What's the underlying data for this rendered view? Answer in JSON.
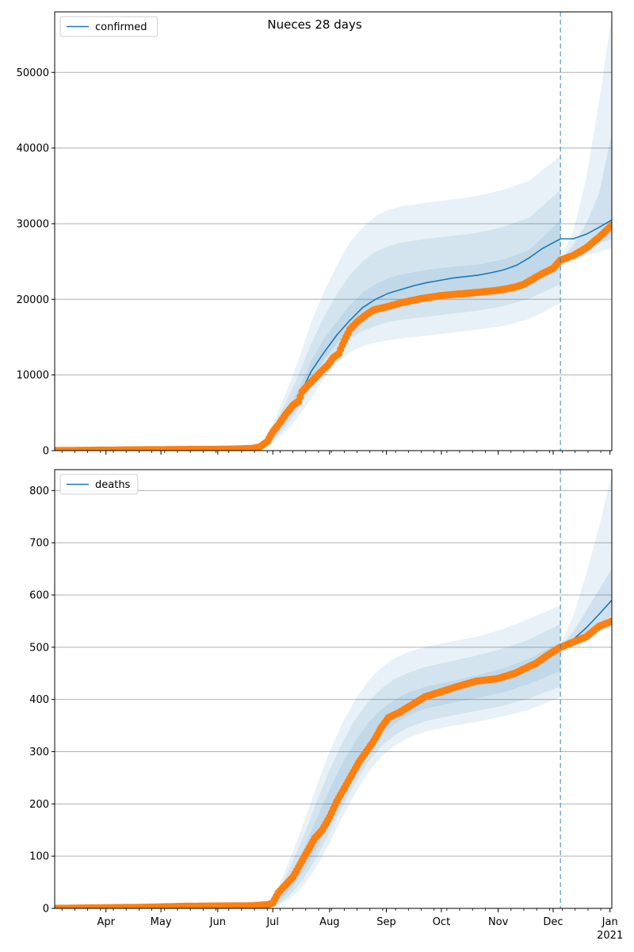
{
  "figure": {
    "title": "Nueces 28 days"
  },
  "colors": {
    "model_line": "#1f77b4",
    "band": "#1f77b4",
    "observed": "#ff7f0e",
    "grid": "#b0b0b0",
    "forecast_marker": "#1f77b4"
  },
  "chart_data": [
    {
      "type": "line",
      "legend": [
        "confirmed"
      ],
      "legend_position": "top-left",
      "grid": "y",
      "x_range": [
        "2020-03-04",
        "2021-01-02"
      ],
      "ylim": [
        0,
        58000
      ],
      "y_ticks": [
        0,
        10000,
        20000,
        30000,
        40000,
        50000
      ],
      "forecast_start": "2020-12-05",
      "x_ticks": [
        {
          "date": "2020-04-01",
          "label": "Apr",
          "year": ""
        },
        {
          "date": "2020-05-01",
          "label": "May",
          "year": ""
        },
        {
          "date": "2020-06-01",
          "label": "Jun",
          "year": ""
        },
        {
          "date": "2020-07-01",
          "label": "Jul",
          "year": ""
        },
        {
          "date": "2020-08-01",
          "label": "Aug",
          "year": ""
        },
        {
          "date": "2020-09-01",
          "label": "Sep",
          "year": ""
        },
        {
          "date": "2020-10-01",
          "label": "Oct",
          "year": ""
        },
        {
          "date": "2020-11-01",
          "label": "Nov",
          "year": ""
        },
        {
          "date": "2020-12-01",
          "label": "Dec",
          "year": ""
        },
        {
          "date": "2021-01-01",
          "label": "Jan",
          "year": "2021"
        }
      ],
      "series": [
        {
          "name": "confirmed",
          "kind": "model-median",
          "x": [
            "2020-03-04",
            "2020-06-24",
            "2020-07-01",
            "2020-07-08",
            "2020-07-15",
            "2020-07-22",
            "2020-07-29",
            "2020-08-05",
            "2020-08-12",
            "2020-08-19",
            "2020-08-26",
            "2020-09-02",
            "2020-09-09",
            "2020-09-16",
            "2020-09-23",
            "2020-09-30",
            "2020-10-07",
            "2020-10-14",
            "2020-10-21",
            "2020-10-28",
            "2020-11-04",
            "2020-11-11",
            "2020-11-18",
            "2020-11-25",
            "2020-12-05",
            "2020-12-12",
            "2020-12-19",
            "2020-12-26",
            "2021-01-02"
          ],
          "y": [
            0,
            200,
            2000,
            4200,
            7000,
            10500,
            13000,
            15300,
            17200,
            18900,
            20000,
            20800,
            21300,
            21800,
            22200,
            22500,
            22800,
            23000,
            23200,
            23500,
            23900,
            24500,
            25500,
            26700,
            28000,
            28000,
            28600,
            29500,
            30500
          ]
        },
        {
          "name": "",
          "kind": "observed",
          "x": [
            "2020-03-04",
            "2020-04-15",
            "2020-05-15",
            "2020-06-10",
            "2020-06-20",
            "2020-06-24",
            "2020-06-28",
            "2020-07-01",
            "2020-07-04",
            "2020-07-08",
            "2020-07-12",
            "2020-07-15",
            "2020-07-17",
            "2020-07-20",
            "2020-07-24",
            "2020-07-28",
            "2020-07-31",
            "2020-08-03",
            "2020-08-06",
            "2020-08-08",
            "2020-08-12",
            "2020-08-16",
            "2020-08-20",
            "2020-08-25",
            "2020-09-01",
            "2020-09-10",
            "2020-09-20",
            "2020-10-01",
            "2020-10-10",
            "2020-10-20",
            "2020-11-01",
            "2020-11-10",
            "2020-11-15",
            "2020-11-20",
            "2020-11-25",
            "2020-12-01",
            "2020-12-05",
            "2020-12-12",
            "2020-12-19",
            "2020-12-26",
            "2021-01-02"
          ],
          "y": [
            0,
            100,
            150,
            200,
            300,
            500,
            1200,
            2500,
            3400,
            4800,
            6000,
            6500,
            7800,
            8600,
            9600,
            10600,
            11300,
            12300,
            12800,
            14000,
            16000,
            17000,
            17800,
            18600,
            19000,
            19600,
            20100,
            20500,
            20700,
            20900,
            21200,
            21600,
            22000,
            22700,
            23400,
            24100,
            25200,
            25800,
            26800,
            28200,
            29800
          ]
        },
        {
          "name": "",
          "kind": "band-outer",
          "x": [
            "2020-03-04",
            "2020-06-24",
            "2020-07-01",
            "2020-07-08",
            "2020-07-15",
            "2020-07-22",
            "2020-07-29",
            "2020-08-05",
            "2020-08-12",
            "2020-08-19",
            "2020-08-26",
            "2020-09-02",
            "2020-09-09",
            "2020-09-23",
            "2020-10-07",
            "2020-10-21",
            "2020-11-04",
            "2020-11-18",
            "2020-12-05"
          ],
          "lower": [
            0,
            100,
            1000,
            2500,
            4500,
            7000,
            9500,
            11500,
            13000,
            13800,
            14300,
            14600,
            14800,
            15200,
            15600,
            16000,
            16500,
            17400,
            19500
          ],
          "upper": [
            0,
            500,
            3500,
            7500,
            12000,
            17000,
            21000,
            24500,
            27500,
            29500,
            31000,
            31800,
            32300,
            32800,
            33200,
            33700,
            34500,
            35700,
            39000
          ]
        },
        {
          "name": "",
          "kind": "band-mid",
          "x": [
            "2020-03-04",
            "2020-06-24",
            "2020-07-01",
            "2020-07-08",
            "2020-07-15",
            "2020-07-22",
            "2020-07-29",
            "2020-08-05",
            "2020-08-12",
            "2020-08-19",
            "2020-08-26",
            "2020-09-02",
            "2020-09-09",
            "2020-09-23",
            "2020-10-07",
            "2020-10-21",
            "2020-11-04",
            "2020-11-18",
            "2020-12-05"
          ],
          "lower": [
            0,
            120,
            1300,
            3100,
            5500,
            8400,
            11000,
            13200,
            14800,
            15800,
            16500,
            17000,
            17300,
            17700,
            18100,
            18500,
            19100,
            20100,
            22000
          ],
          "upper": [
            0,
            400,
            2900,
            6300,
            10000,
            14200,
            17700,
            20700,
            23200,
            25000,
            26300,
            27000,
            27500,
            28000,
            28400,
            28800,
            29600,
            30800,
            34500
          ]
        },
        {
          "name": "",
          "kind": "band-inner",
          "x": [
            "2020-03-04",
            "2020-06-24",
            "2020-07-01",
            "2020-07-08",
            "2020-07-15",
            "2020-07-22",
            "2020-07-29",
            "2020-08-05",
            "2020-08-12",
            "2020-08-19",
            "2020-08-26",
            "2020-09-02",
            "2020-09-09",
            "2020-09-23",
            "2020-10-07",
            "2020-10-21",
            "2020-11-04",
            "2020-11-18",
            "2020-12-05"
          ],
          "lower": [
            0,
            150,
            1600,
            3600,
            6200,
            9400,
            12000,
            14200,
            16000,
            17300,
            18200,
            18800,
            19200,
            19800,
            20300,
            20700,
            21200,
            22300,
            24300
          ],
          "upper": [
            0,
            280,
            2400,
            5100,
            8100,
            11900,
            14800,
            17100,
            19200,
            20900,
            22000,
            22800,
            23300,
            23900,
            24300,
            24600,
            25300,
            26500,
            30500
          ]
        },
        {
          "name": "",
          "kind": "forecast-band-outer",
          "x": [
            "2020-12-05",
            "2020-12-12",
            "2020-12-19",
            "2020-12-26",
            "2021-01-02"
          ],
          "lower": [
            24500,
            25200,
            25800,
            26300,
            26800
          ],
          "upper": [
            25500,
            29000,
            36000,
            46000,
            57500
          ]
        },
        {
          "name": "",
          "kind": "forecast-band-inner",
          "x": [
            "2020-12-05",
            "2020-12-12",
            "2020-12-19",
            "2020-12-26",
            "2021-01-02"
          ],
          "lower": [
            25100,
            25800,
            26600,
            27400,
            28000
          ],
          "upper": [
            25200,
            27200,
            30000,
            34000,
            42000
          ]
        }
      ]
    },
    {
      "type": "line",
      "legend": [
        "deaths"
      ],
      "legend_position": "top-left",
      "grid": "y",
      "x_range": [
        "2020-03-04",
        "2021-01-02"
      ],
      "ylim": [
        0,
        840
      ],
      "y_ticks": [
        0,
        100,
        200,
        300,
        400,
        500,
        600,
        700,
        800
      ],
      "forecast_start": "2020-12-05",
      "x_ticks": [
        {
          "date": "2020-04-01",
          "label": "Apr",
          "year": ""
        },
        {
          "date": "2020-05-01",
          "label": "May",
          "year": ""
        },
        {
          "date": "2020-06-01",
          "label": "Jun",
          "year": ""
        },
        {
          "date": "2020-07-01",
          "label": "Jul",
          "year": ""
        },
        {
          "date": "2020-08-01",
          "label": "Aug",
          "year": ""
        },
        {
          "date": "2020-09-01",
          "label": "Sep",
          "year": ""
        },
        {
          "date": "2020-10-01",
          "label": "Oct",
          "year": ""
        },
        {
          "date": "2020-11-01",
          "label": "Nov",
          "year": ""
        },
        {
          "date": "2020-12-01",
          "label": "Dec",
          "year": ""
        },
        {
          "date": "2021-01-01",
          "label": "Jan",
          "year": "2021"
        }
      ],
      "series": [
        {
          "name": "deaths",
          "kind": "model-median",
          "x": [
            "2020-12-05",
            "2020-12-12",
            "2020-12-19",
            "2020-12-26",
            "2021-01-02"
          ],
          "y": [
            500,
            515,
            537,
            563,
            590
          ]
        },
        {
          "name": "",
          "kind": "observed",
          "x": [
            "2020-03-04",
            "2020-04-20",
            "2020-05-15",
            "2020-06-20",
            "2020-06-28",
            "2020-07-01",
            "2020-07-04",
            "2020-07-08",
            "2020-07-12",
            "2020-07-16",
            "2020-07-20",
            "2020-07-24",
            "2020-07-28",
            "2020-08-01",
            "2020-08-05",
            "2020-08-09",
            "2020-08-13",
            "2020-08-17",
            "2020-08-21",
            "2020-08-25",
            "2020-08-29",
            "2020-09-02",
            "2020-09-08",
            "2020-09-15",
            "2020-09-22",
            "2020-10-01",
            "2020-10-10",
            "2020-10-20",
            "2020-11-01",
            "2020-11-10",
            "2020-11-16",
            "2020-11-22",
            "2020-11-28",
            "2020-12-05",
            "2020-12-12",
            "2020-12-19",
            "2020-12-26",
            "2021-01-02"
          ],
          "y": [
            0,
            2,
            4,
            5,
            7,
            10,
            30,
            45,
            60,
            85,
            110,
            135,
            150,
            175,
            205,
            230,
            255,
            280,
            300,
            320,
            345,
            365,
            375,
            390,
            405,
            415,
            425,
            435,
            440,
            450,
            460,
            470,
            485,
            500,
            510,
            520,
            540,
            550
          ]
        },
        {
          "name": "",
          "kind": "band-outer",
          "x": [
            "2020-03-04",
            "2020-06-28",
            "2020-07-04",
            "2020-07-11",
            "2020-07-18",
            "2020-07-25",
            "2020-08-01",
            "2020-08-08",
            "2020-08-15",
            "2020-08-22",
            "2020-08-29",
            "2020-09-05",
            "2020-09-12",
            "2020-09-22",
            "2020-10-05",
            "2020-10-20",
            "2020-11-04",
            "2020-11-18",
            "2020-12-05"
          ],
          "lower": [
            0,
            1,
            5,
            20,
            45,
            80,
            125,
            175,
            220,
            260,
            290,
            310,
            325,
            338,
            348,
            357,
            368,
            380,
            405
          ],
          "upper": [
            0,
            12,
            40,
            100,
            165,
            235,
            300,
            355,
            400,
            435,
            460,
            478,
            490,
            500,
            510,
            520,
            535,
            555,
            580
          ]
        },
        {
          "name": "",
          "kind": "band-mid",
          "x": [
            "2020-03-04",
            "2020-06-28",
            "2020-07-04",
            "2020-07-11",
            "2020-07-18",
            "2020-07-25",
            "2020-08-01",
            "2020-08-08",
            "2020-08-15",
            "2020-08-22",
            "2020-08-29",
            "2020-09-05",
            "2020-09-12",
            "2020-09-22",
            "2020-10-05",
            "2020-10-20",
            "2020-11-04",
            "2020-11-18",
            "2020-12-05"
          ],
          "lower": [
            0,
            2,
            8,
            28,
            58,
            98,
            145,
            195,
            240,
            280,
            310,
            330,
            345,
            358,
            368,
            378,
            388,
            402,
            425
          ],
          "upper": [
            0,
            9,
            32,
            82,
            140,
            205,
            265,
            318,
            362,
            395,
            420,
            438,
            450,
            462,
            472,
            484,
            498,
            515,
            545
          ]
        },
        {
          "name": "",
          "kind": "band-inner",
          "x": [
            "2020-03-04",
            "2020-06-28",
            "2020-07-04",
            "2020-07-11",
            "2020-07-18",
            "2020-07-25",
            "2020-08-01",
            "2020-08-08",
            "2020-08-15",
            "2020-08-22",
            "2020-08-29",
            "2020-09-05",
            "2020-09-12",
            "2020-09-22",
            "2020-10-05",
            "2020-10-20",
            "2020-11-04",
            "2020-11-18",
            "2020-12-05"
          ],
          "lower": [
            0,
            3,
            12,
            38,
            72,
            115,
            165,
            215,
            262,
            302,
            332,
            352,
            368,
            382,
            392,
            402,
            414,
            430,
            455
          ],
          "upper": [
            0,
            7,
            25,
            65,
            115,
            172,
            228,
            278,
            320,
            355,
            380,
            398,
            412,
            424,
            434,
            446,
            460,
            478,
            510
          ]
        },
        {
          "name": "",
          "kind": "forecast-band-outer",
          "x": [
            "2020-12-05",
            "2020-12-12",
            "2020-12-19",
            "2020-12-26",
            "2021-01-02"
          ],
          "lower": [
            500,
            508,
            518,
            530,
            540
          ],
          "upper": [
            505,
            560,
            640,
            730,
            830
          ]
        },
        {
          "name": "",
          "kind": "forecast-band-inner",
          "x": [
            "2020-12-05",
            "2020-12-12",
            "2020-12-19",
            "2020-12-26",
            "2021-01-02"
          ],
          "lower": [
            500,
            510,
            525,
            545,
            560
          ],
          "upper": [
            502,
            530,
            570,
            610,
            650
          ]
        }
      ]
    }
  ]
}
